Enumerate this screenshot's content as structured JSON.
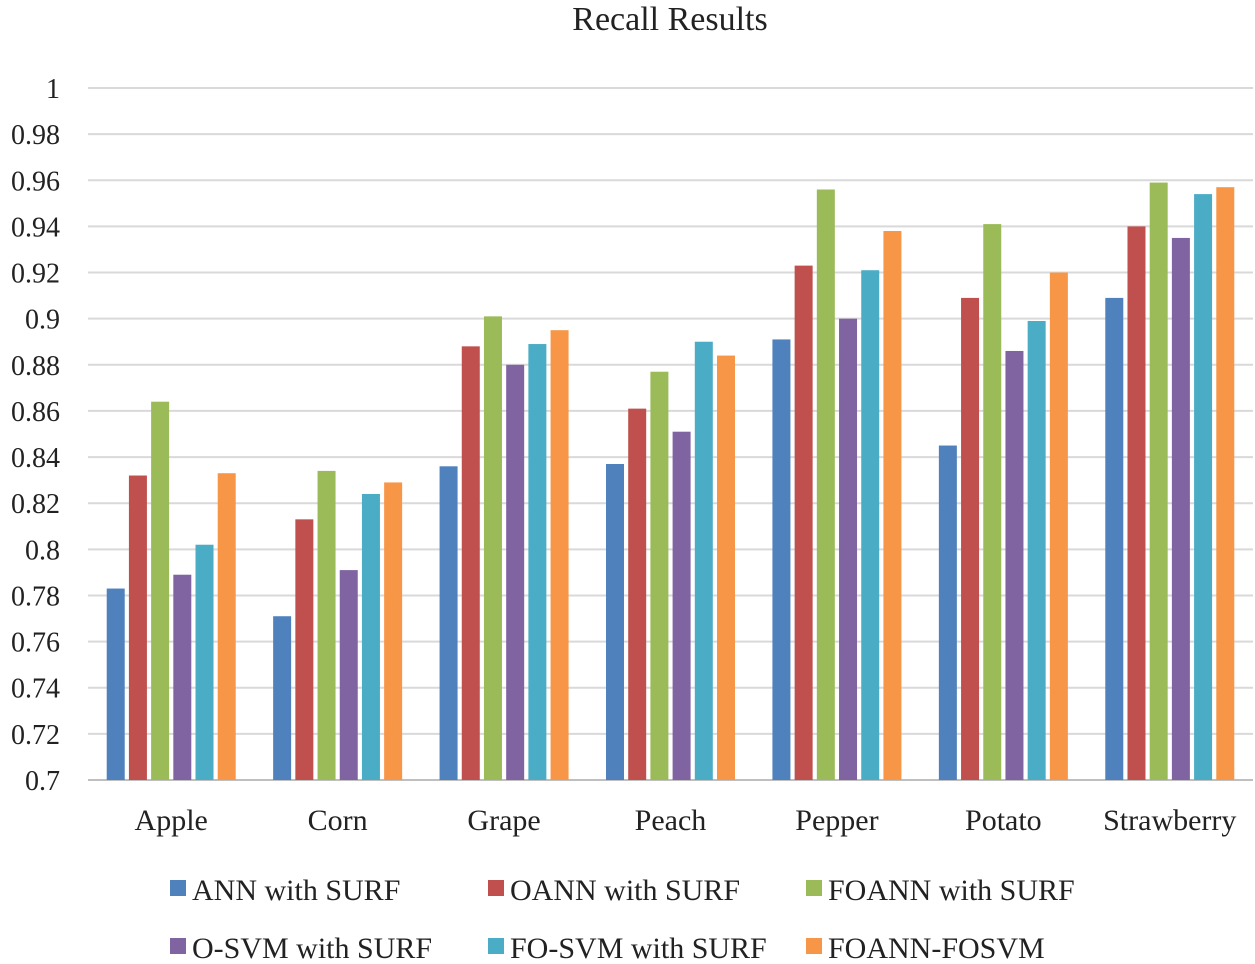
{
  "chart_data": {
    "type": "bar",
    "title": "Recall Results",
    "xlabel": "",
    "ylabel": "",
    "ylim": [
      0.7,
      1
    ],
    "yticks": [
      "1",
      "0.98",
      "0.96",
      "0.94",
      "0.92",
      "0.9",
      "0.88",
      "0.86",
      "0.84",
      "0.82",
      "0.8",
      "0.78",
      "0.76",
      "0.74",
      "0.72",
      "0.7"
    ],
    "grid": true,
    "legend_position": "bottom",
    "categories": [
      "Apple",
      "Corn",
      "Grape",
      "Peach",
      "Pepper",
      "Potato",
      "Strawberry"
    ],
    "series": [
      {
        "name": "ANN with SURF",
        "color": "#4F81BD",
        "values": [
          0.783,
          0.771,
          0.836,
          0.837,
          0.891,
          0.845,
          0.909
        ]
      },
      {
        "name": "OANN with SURF",
        "color": "#C0504D",
        "values": [
          0.832,
          0.813,
          0.888,
          0.861,
          0.923,
          0.909,
          0.94
        ]
      },
      {
        "name": "FOANN with SURF",
        "color": "#9BBB59",
        "values": [
          0.864,
          0.834,
          0.901,
          0.877,
          0.956,
          0.941,
          0.959
        ]
      },
      {
        "name": "O-SVM with SURF",
        "color": "#8064A2",
        "values": [
          0.789,
          0.791,
          0.88,
          0.851,
          0.9,
          0.886,
          0.935
        ]
      },
      {
        "name": "FO-SVM with SURF",
        "color": "#4BACC6",
        "values": [
          0.802,
          0.824,
          0.889,
          0.89,
          0.921,
          0.899,
          0.954
        ]
      },
      {
        "name": "FOANN-FOSVM",
        "color": "#F79646",
        "values": [
          0.833,
          0.829,
          0.895,
          0.884,
          0.938,
          0.92,
          0.957
        ]
      }
    ]
  }
}
